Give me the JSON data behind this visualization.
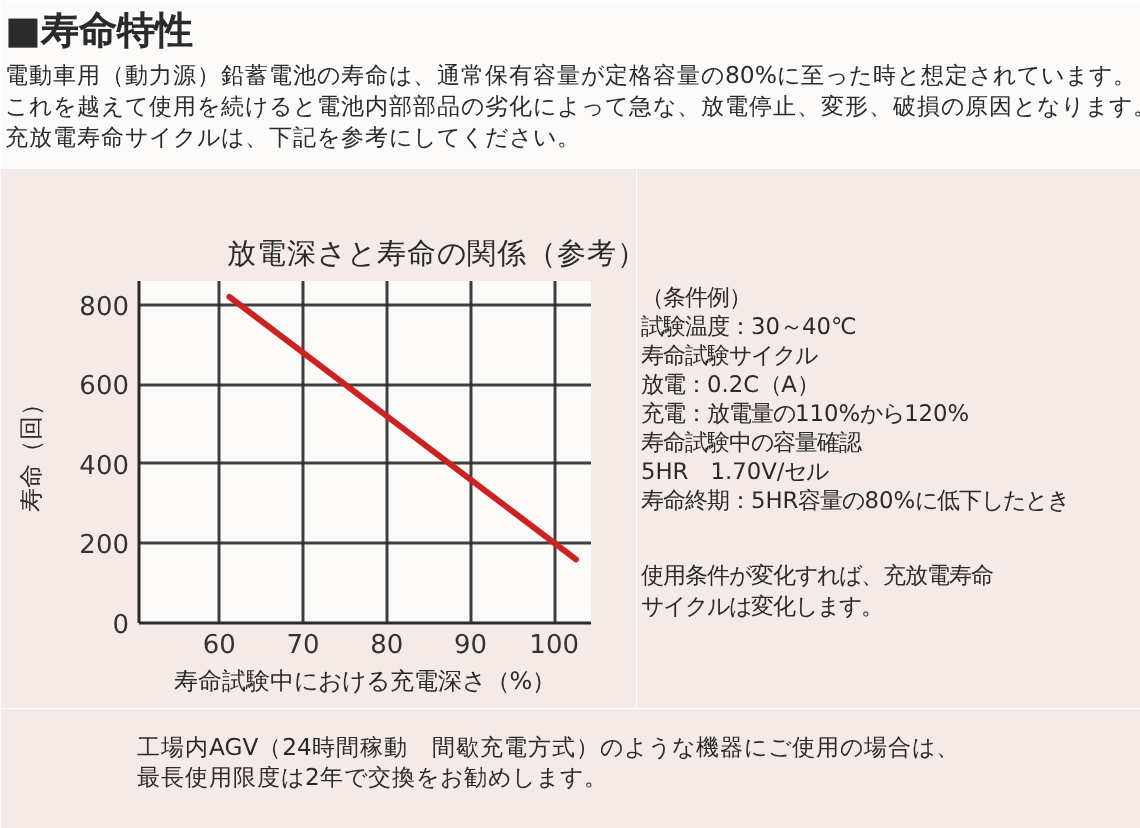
{
  "chart_data": {
    "type": "line",
    "title": "放電深さと寿命の関係（参考）",
    "xlabel": "寿命試験中における充電深さ（%）",
    "ylabel": "寿命（回）",
    "x": [
      61.2,
      102.6
    ],
    "series": [
      {
        "color": "#cc2222",
        "values": [
          820,
          160
        ]
      }
    ],
    "xlim": [
      50.4,
      104.4
    ],
    "ylim": [
      0,
      860
    ],
    "xticks": [
      60,
      70,
      80,
      90,
      100
    ],
    "yticks": [
      0,
      200,
      400,
      600,
      800
    ],
    "grid": true,
    "annotations": [
      "■寿命特性",
      "電動車用（動力源）鉛蓄電池の寿命は、通常保有容量が定格容量の80%に至った時と想定されています。",
      "これを越えて使用を続けると電池内部部品の劣化によって急な、放電停止、変形、破損の原因となります。",
      "充放電寿命サイクルは、下記を参考にしてください。",
      "（条件例）",
      "試験温度：30～40℃",
      "寿命試験サイクル",
      "放電：0.2C（A）",
      "充電：放電量の110%から120%",
      "寿命試験中の容量確認",
      "5HR　1.70V/セル",
      "寿命終期：5HR容量の80%に低下したとき",
      "使用条件が変化すれば、充放電寿命",
      "サイクルは変化します。",
      "工場内AGV（24時間稼動　間歇充電方式）のような機器にご使用の場合は、",
      "最長使用限度は2年で交換をお勧めします。"
    ]
  }
}
